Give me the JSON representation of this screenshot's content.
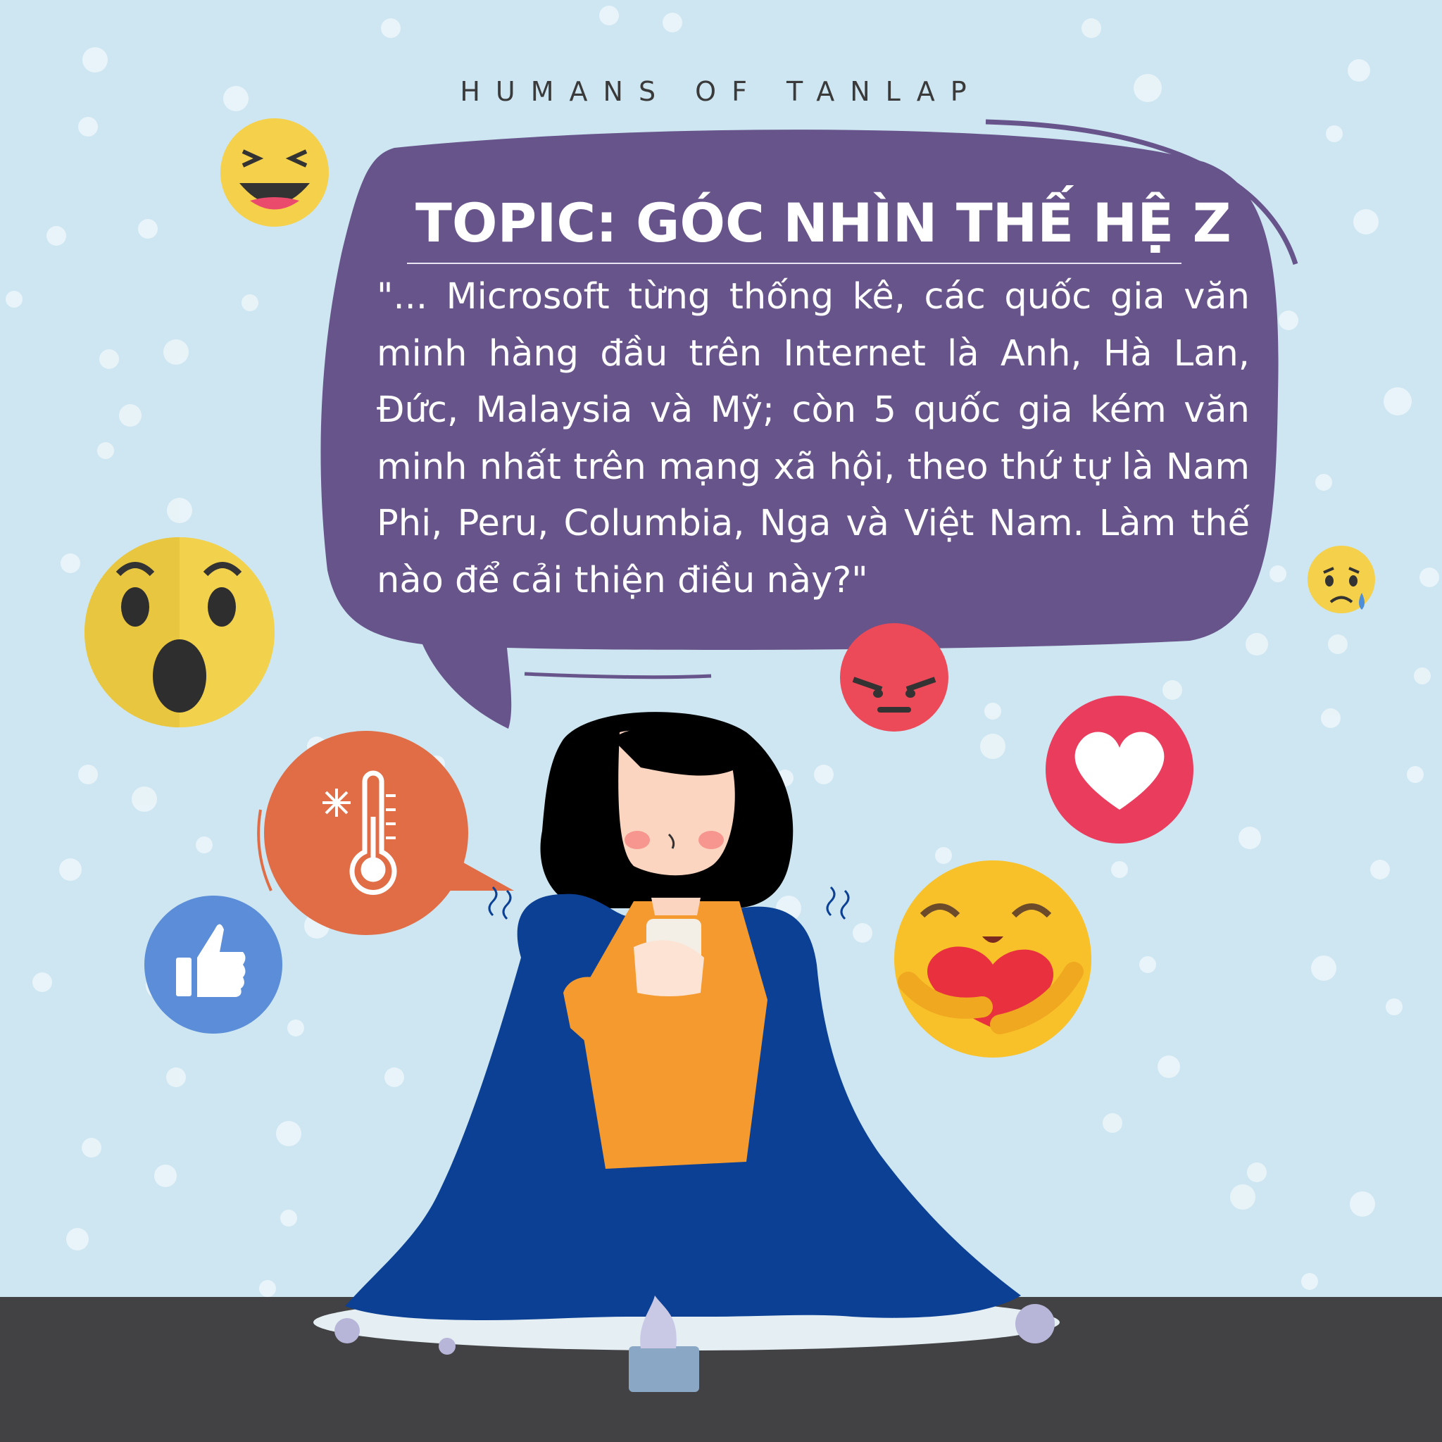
{
  "header": {
    "brand": "HUMANS OF TANLAP"
  },
  "bubble": {
    "title": "TOPIC: GÓC NHÌN THẾ HỆ Z",
    "quote": "\"... Microsoft từng thống kê, các quốc gia văn minh hàng đầu trên Internet là Anh, Hà Lan, Đức, Malaysia và Mỹ; còn 5 quốc gia kém văn minh nhất trên mạng xã hội, theo thứ tự là Nam Phi, Peru, Columbia, Nga và Việt Nam. Làm thế nào để cải thiện điều này?\""
  },
  "colors": {
    "background": "#cde6f1",
    "bubble": "#67548a",
    "floor": "#424143",
    "blanket": "#0b4094",
    "sweater": "#f59a2e",
    "thermo_bubble": "#e06d46"
  },
  "icons": [
    "laughing-emoji-icon",
    "surprised-emoji-icon",
    "sad-emoji-icon",
    "angry-emoji-icon",
    "heart-reaction-icon",
    "like-reaction-icon",
    "care-reaction-icon",
    "thermometer-icon",
    "snowflake-icon"
  ]
}
